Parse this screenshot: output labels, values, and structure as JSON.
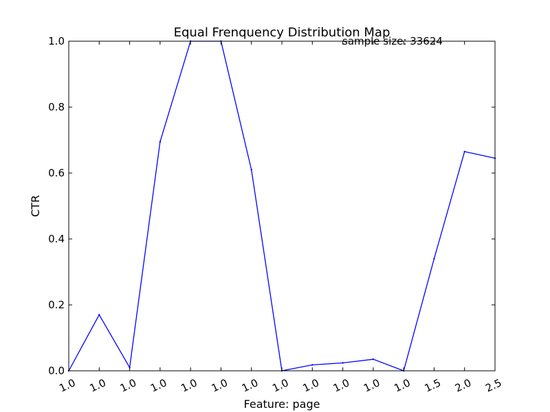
{
  "chart_data": {
    "type": "line",
    "title": "Equal Frenquency Distribution Map",
    "annotation": "sample size: 33624",
    "xlabel": "Feature: page",
    "ylabel": "CTR",
    "x_tick_labels": [
      "1.0",
      "1.0",
      "1.0",
      "1.0",
      "1.0",
      "1.0",
      "1.0",
      "1.0",
      "1.0",
      "1.0",
      "1.0",
      "1.0",
      "1.5",
      "2.0",
      "2.5"
    ],
    "y_tick_labels": [
      "0.0",
      "0.2",
      "0.4",
      "0.6",
      "0.8",
      "1.0"
    ],
    "ylim": [
      0,
      1
    ],
    "grid": false,
    "series": [
      {
        "color": "#0000ff",
        "values": [
          0.0,
          0.17,
          0.01,
          0.695,
          1.0,
          1.0,
          0.61,
          0.0,
          0.018,
          0.024,
          0.035,
          0.0,
          0.34,
          0.665,
          0.645
        ]
      }
    ]
  }
}
